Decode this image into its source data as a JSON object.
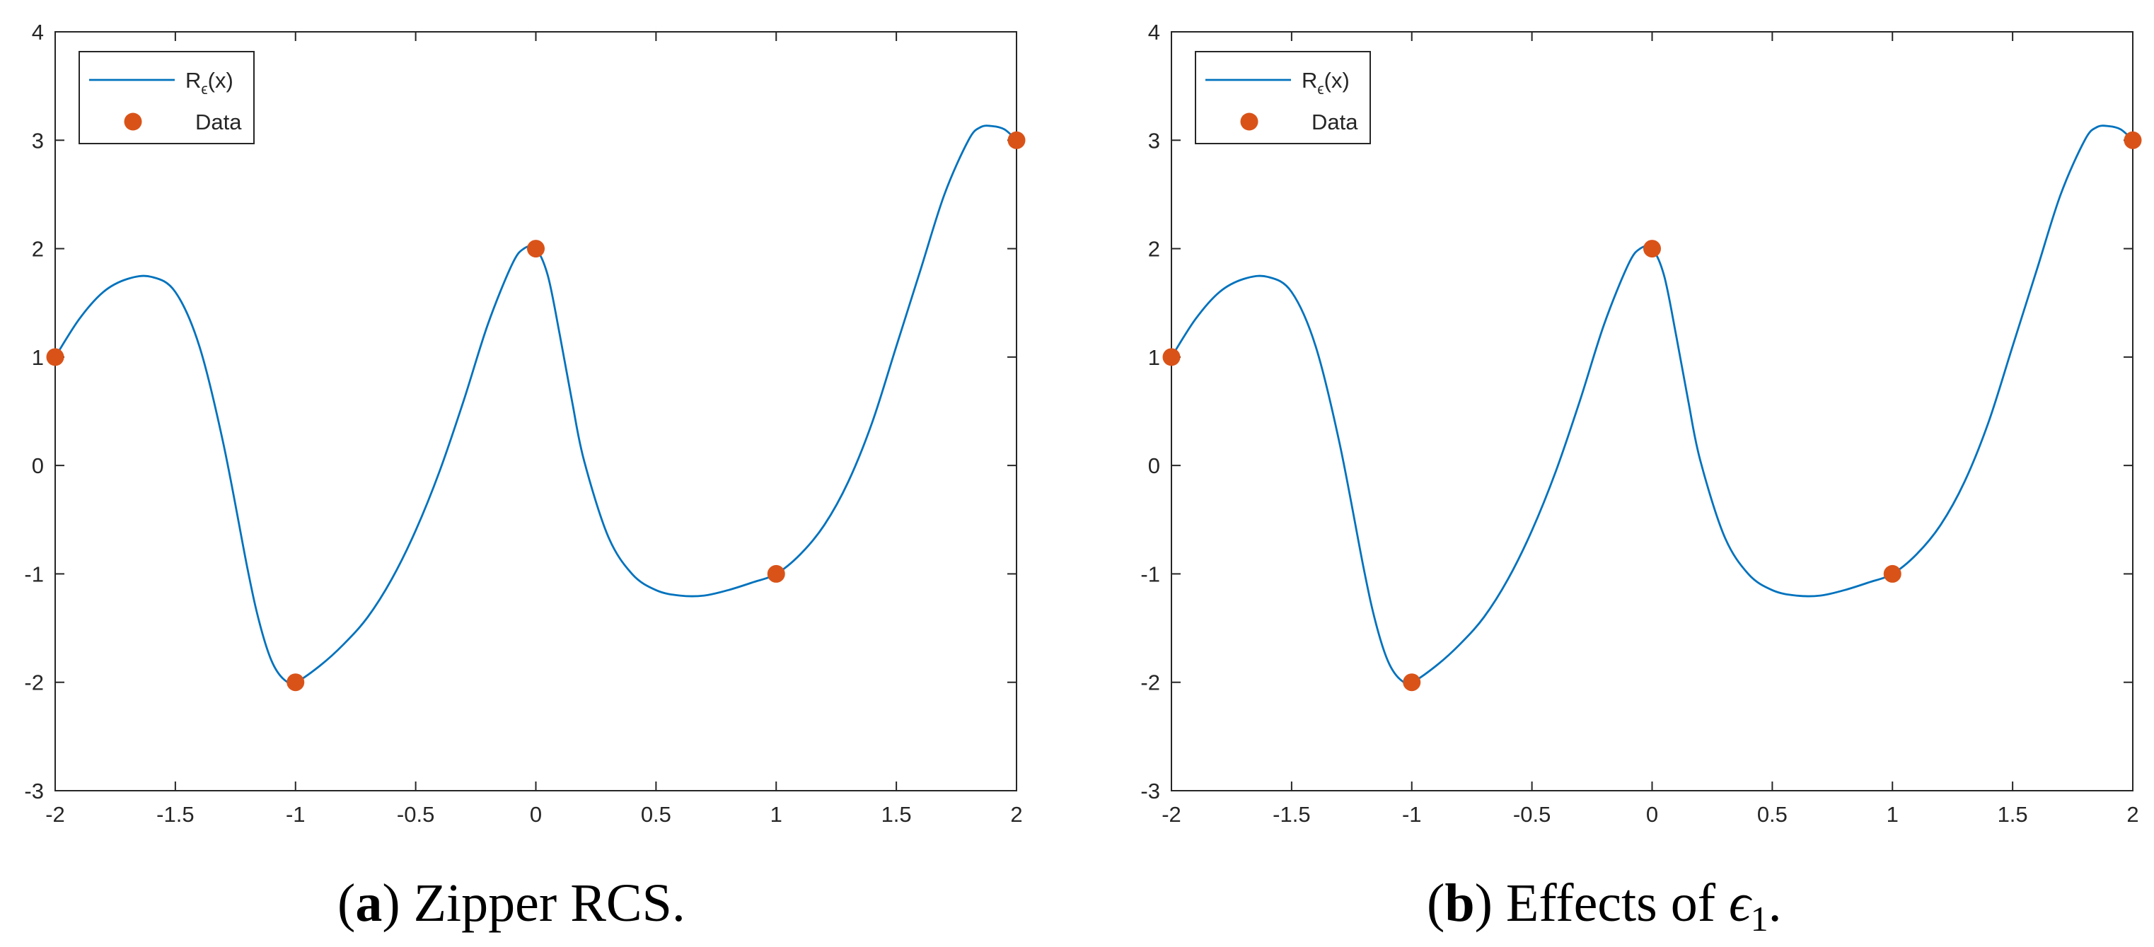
{
  "colors": {
    "curve": "#0072BD",
    "data": "#D95319",
    "axis": "#262626"
  },
  "chart_data": [
    {
      "type": "line",
      "id": "a",
      "caption_label": "a",
      "caption_text": "Zipper RCS.",
      "xlim": [
        -2,
        2
      ],
      "ylim": [
        -3,
        4
      ],
      "xticks": [
        -2,
        -1.5,
        -1,
        -0.5,
        0,
        0.5,
        1,
        1.5,
        2
      ],
      "xtick_labels": [
        "-2",
        "-1.5",
        "-1",
        "-0.5",
        "0",
        "0.5",
        "1",
        "1.5",
        "2"
      ],
      "yticks": [
        -3,
        -2,
        -1,
        0,
        1,
        2,
        3,
        4
      ],
      "ytick_labels": [
        "-3",
        "-2",
        "-1",
        "0",
        "1",
        "2",
        "3",
        "4"
      ],
      "legend_position": "top-left",
      "legend": {
        "curve_main": "R",
        "curve_sub": "ϵ",
        "curve_tail": "(x)",
        "data": "Data"
      },
      "curve": {
        "x": [
          -2,
          -1.9,
          -1.8,
          -1.7,
          -1.6,
          -1.5,
          -1.4,
          -1.3,
          -1.2,
          -1.15,
          -1.1,
          -1.05,
          -1,
          -0.9,
          -0.8,
          -0.7,
          -0.6,
          -0.5,
          -0.4,
          -0.3,
          -0.2,
          -0.1,
          -0.05,
          0,
          0.05,
          0.1,
          0.15,
          0.2,
          0.3,
          0.4,
          0.5,
          0.6,
          0.7,
          0.8,
          0.9,
          1,
          1.1,
          1.2,
          1.3,
          1.4,
          1.5,
          1.6,
          1.7,
          1.8,
          1.85,
          1.9,
          1.95,
          2
        ],
        "y": [
          1,
          1.35,
          1.6,
          1.72,
          1.74,
          1.6,
          1.1,
          0.2,
          -0.95,
          -1.45,
          -1.8,
          -1.97,
          -2,
          -1.85,
          -1.65,
          -1.4,
          -1.05,
          -0.6,
          -0.05,
          0.6,
          1.3,
          1.85,
          2,
          2,
          1.75,
          1.2,
          0.6,
          0.05,
          -0.65,
          -1.0,
          -1.15,
          -1.2,
          -1.2,
          -1.15,
          -1.08,
          -1,
          -0.82,
          -0.55,
          -0.15,
          0.4,
          1.1,
          1.8,
          2.5,
          3.0,
          3.12,
          3.13,
          3.1,
          3
        ]
      },
      "data_points": {
        "x": [
          -2,
          -1,
          0,
          1,
          2
        ],
        "y": [
          1,
          -2,
          2,
          -1,
          3
        ]
      }
    },
    {
      "type": "line",
      "id": "b",
      "caption_label": "b",
      "caption_text": "Effects of",
      "caption_symbol": "ϵ",
      "caption_symbol_sub": "1",
      "caption_end": ".",
      "xlim": [
        -2,
        2
      ],
      "ylim": [
        -3,
        4
      ],
      "xticks": [
        -2,
        -1.5,
        -1,
        -0.5,
        0,
        0.5,
        1,
        1.5,
        2
      ],
      "xtick_labels": [
        "-2",
        "-1.5",
        "-1",
        "-0.5",
        "0",
        "0.5",
        "1",
        "1.5",
        "2"
      ],
      "yticks": [
        -3,
        -2,
        -1,
        0,
        1,
        2,
        3,
        4
      ],
      "ytick_labels": [
        "-3",
        "-2",
        "-1",
        "0",
        "1",
        "2",
        "3",
        "4"
      ],
      "legend_position": "top-left",
      "legend": {
        "curve_main": "R",
        "curve_sub": "ϵ",
        "curve_tail": "(x)",
        "data": "Data"
      },
      "curve": {
        "x": [
          -2,
          -1.9,
          -1.8,
          -1.7,
          -1.6,
          -1.5,
          -1.4,
          -1.3,
          -1.2,
          -1.15,
          -1.1,
          -1.05,
          -1,
          -0.9,
          -0.8,
          -0.7,
          -0.6,
          -0.5,
          -0.4,
          -0.3,
          -0.2,
          -0.1,
          -0.05,
          0,
          0.05,
          0.1,
          0.15,
          0.2,
          0.3,
          0.4,
          0.5,
          0.6,
          0.7,
          0.8,
          0.9,
          1,
          1.1,
          1.2,
          1.3,
          1.4,
          1.5,
          1.6,
          1.7,
          1.8,
          1.85,
          1.9,
          1.95,
          2
        ],
        "y": [
          1,
          1.35,
          1.6,
          1.72,
          1.74,
          1.6,
          1.1,
          0.2,
          -0.95,
          -1.45,
          -1.8,
          -1.97,
          -2,
          -1.85,
          -1.65,
          -1.4,
          -1.05,
          -0.6,
          -0.05,
          0.6,
          1.3,
          1.85,
          2,
          2,
          1.75,
          1.2,
          0.6,
          0.05,
          -0.65,
          -1.0,
          -1.15,
          -1.2,
          -1.2,
          -1.15,
          -1.08,
          -1,
          -0.82,
          -0.55,
          -0.15,
          0.4,
          1.1,
          1.8,
          2.5,
          3.0,
          3.12,
          3.13,
          3.1,
          3
        ]
      },
      "data_points": {
        "x": [
          -2,
          -1,
          0,
          1,
          2
        ],
        "y": [
          1,
          -2,
          2,
          -1,
          3
        ]
      }
    }
  ]
}
